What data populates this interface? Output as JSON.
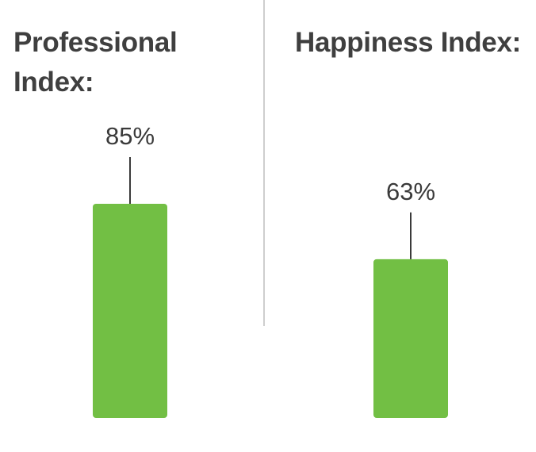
{
  "chart_data": [
    {
      "type": "bar",
      "title": "Professional Index:",
      "categories": [
        "Professional Index"
      ],
      "values": [
        85
      ],
      "value_labels": [
        "85%"
      ],
      "ylim": [
        0,
        100
      ]
    },
    {
      "type": "bar",
      "title": "Happiness Index:",
      "categories": [
        "Happiness Index"
      ],
      "values": [
        63
      ],
      "value_labels": [
        "63%"
      ],
      "ylim": [
        0,
        100
      ]
    }
  ],
  "colors": {
    "bar": "#72bf44",
    "title": "#3f3f3f",
    "label": "#3a3a3a",
    "leader_line": "#3a3a3a",
    "divider": "#bdbdbd"
  }
}
